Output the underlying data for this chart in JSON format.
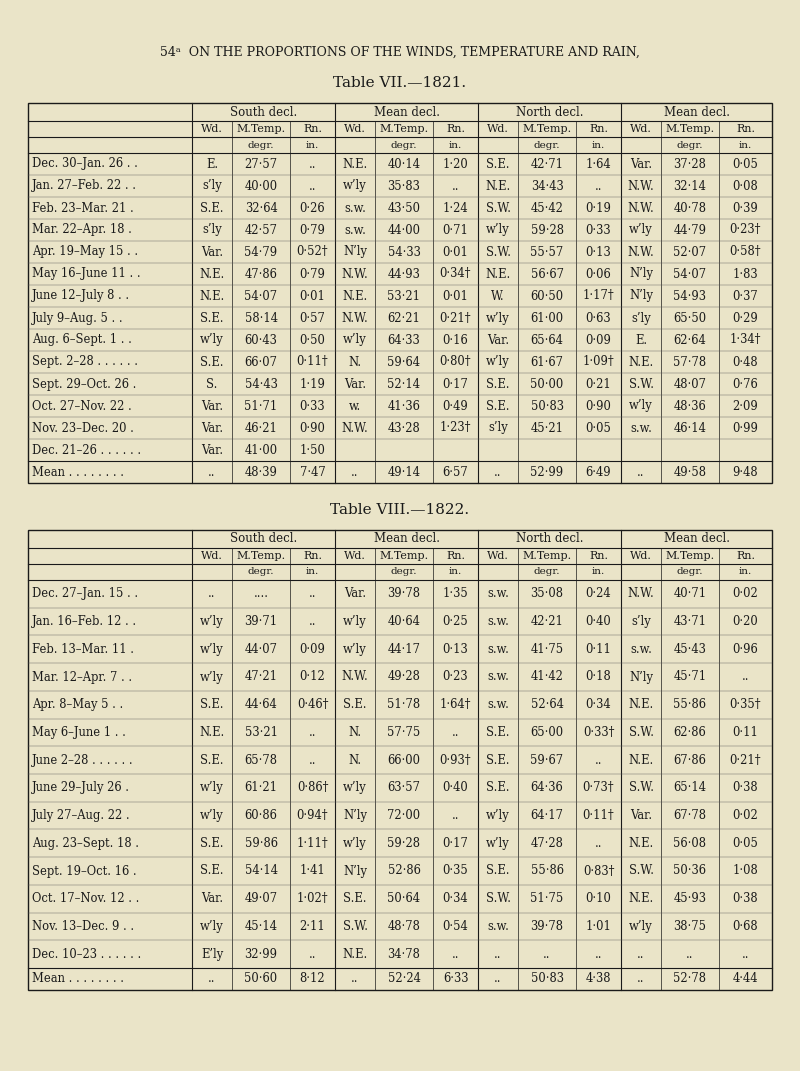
{
  "bg_color": "#EAE4C8",
  "text_color": "#1a1a1a",
  "page_header": "54ᵃ  ON THE PROPORTIONS OF THE WINDS, TEMPERATURE AND RAIN,",
  "table1_title": "Table VII.—1821.",
  "table2_title": "Table VIII.—1822.",
  "group_labels": [
    "South decl.",
    "Mean decl.",
    "North decl.",
    "Mean decl."
  ],
  "col_sub_labels": [
    "Wd.",
    "M.Temp.",
    "Rn."
  ],
  "col_sub2_labels": [
    "degr.",
    "in."
  ],
  "table1_rows": [
    [
      "Dec. 30–Jan. 26 . .",
      "E.",
      "27·57",
      "..",
      "N.E.",
      "40·14",
      "1·20",
      "S.E.",
      "42·71",
      "1·64",
      "Var.",
      "37·28",
      "0·05"
    ],
    [
      "Jan. 27–Feb. 22 . .",
      "s’ly",
      "40·00",
      "..",
      "w’ly",
      "35·83",
      "..",
      "N.E.",
      "34·43",
      "..",
      "N.W.",
      "32·14",
      "0·08"
    ],
    [
      "Feb. 23–Mar. 21 .",
      "S.E.",
      "32·64",
      "0·26",
      "s.w.",
      "43·50",
      "1·24",
      "S.W.",
      "45·42",
      "0·19",
      "N.W.",
      "40·78",
      "0·39"
    ],
    [
      "Mar. 22–Apr. 18 .",
      "s’ly",
      "42·57",
      "0·79",
      "s.w.",
      "44·00",
      "0·71",
      "w’ly",
      "59·28",
      "0·33",
      "w’ly",
      "44·79",
      "0·23†"
    ],
    [
      "Apr. 19–May 15 . .",
      "Var.",
      "54·79",
      "0·52†",
      "N’ly",
      "54·33",
      "0·01",
      "S.W.",
      "55·57",
      "0·13",
      "N.W.",
      "52·07",
      "0·58†"
    ],
    [
      "May 16–June 11 . .",
      "N.E.",
      "47·86",
      "0·79",
      "N.W.",
      "44·93",
      "0·34†",
      "N.E.",
      "56·67",
      "0·06",
      "N’ly",
      "54·07",
      "1·83"
    ],
    [
      "June 12–July 8 . .",
      "N.E.",
      "54·07",
      "0·01",
      "N.E.",
      "53·21",
      "0·01",
      "W.",
      "60·50",
      "1·17†",
      "N’ly",
      "54·93",
      "0·37"
    ],
    [
      "July 9–Aug. 5 . .",
      "S.E.",
      "58·14",
      "0·57",
      "N.W.",
      "62·21",
      "0·21†",
      "w’ly",
      "61·00",
      "0·63",
      "s’ly",
      "65·50",
      "0·29"
    ],
    [
      "Aug. 6–Sept. 1 . .",
      "w’ly",
      "60·43",
      "0·50",
      "w’ly",
      "64·33",
      "0·16",
      "Var.",
      "65·64",
      "0·09",
      "E.",
      "62·64",
      "1·34†"
    ],
    [
      "Sept. 2–28 . . . . . .",
      "S.E.",
      "66·07",
      "0·11†",
      "N.",
      "59·64",
      "0·80†",
      "w’ly",
      "61·67",
      "1·09†",
      "N.E.",
      "57·78",
      "0·48"
    ],
    [
      "Sept. 29–Oct. 26 .",
      "S.",
      "54·43",
      "1·19",
      "Var.",
      "52·14",
      "0·17",
      "S.E.",
      "50·00",
      "0·21",
      "S.W.",
      "48·07",
      "0·76"
    ],
    [
      "Oct. 27–Nov. 22 .",
      "Var.",
      "51·71",
      "0·33",
      "w.",
      "41·36",
      "0·49",
      "S.E.",
      "50·83",
      "0·90",
      "w’ly",
      "48·36",
      "2·09"
    ],
    [
      "Nov. 23–Dec. 20 .",
      "Var.",
      "46·21",
      "0·90",
      "N.W.",
      "43·28",
      "1·23†",
      "s’ly",
      "45·21",
      "0·05",
      "s.w.",
      "46·14",
      "0·99"
    ],
    [
      "Dec. 21–26 . . . . . .",
      "Var.",
      "41·00",
      "1·50",
      "",
      "",
      "",
      "",
      "",
      "",
      "",
      "",
      ""
    ]
  ],
  "table1_mean": [
    "Mean . . . . . . . .",
    "..",
    "48·39",
    "7·47",
    "..",
    "49·14",
    "6·57",
    "..",
    "52·99",
    "6·49",
    "..",
    "49·58",
    "9·48"
  ],
  "table2_rows": [
    [
      "Dec. 27–Jan. 15 . .",
      "..",
      "....",
      "..",
      "Var.",
      "39·78",
      "1·35",
      "s.w.",
      "35·08",
      "0·24",
      "N.W.",
      "40·71",
      "0·02"
    ],
    [
      "Jan. 16–Feb. 12 . .",
      "w’ly",
      "39·71",
      "..",
      "w’ly",
      "40·64",
      "0·25",
      "s.w.",
      "42·21",
      "0·40",
      "s’ly",
      "43·71",
      "0·20"
    ],
    [
      "Feb. 13–Mar. 11 .",
      "w’ly",
      "44·07",
      "0·09",
      "w’ly",
      "44·17",
      "0·13",
      "s.w.",
      "41·75",
      "0·11",
      "s.w.",
      "45·43",
      "0·96"
    ],
    [
      "Mar. 12–Apr. 7 . .",
      "w’ly",
      "47·21",
      "0·12",
      "N.W.",
      "49·28",
      "0·23",
      "s.w.",
      "41·42",
      "0·18",
      "N’ly",
      "45·71",
      ".."
    ],
    [
      "Apr. 8–May 5 . .",
      "S.E.",
      "44·64",
      "0·46†",
      "S.E.",
      "51·78",
      "1·64†",
      "s.w.",
      "52·64",
      "0·34",
      "N.E.",
      "55·86",
      "0·35†"
    ],
    [
      "May 6–June 1 . .",
      "N.E.",
      "53·21",
      "..",
      "N.",
      "57·75",
      "..",
      "S.E.",
      "65·00",
      "0·33†",
      "S.W.",
      "62·86",
      "0·11"
    ],
    [
      "June 2–28 . . . . . .",
      "S.E.",
      "65·78",
      "..",
      "N.",
      "66·00",
      "0·93†",
      "S.E.",
      "59·67",
      "..",
      "N.E.",
      "67·86",
      "0·21†"
    ],
    [
      "June 29–July 26 .",
      "w’ly",
      "61·21",
      "0·86†",
      "w’ly",
      "63·57",
      "0·40",
      "S.E.",
      "64·36",
      "0·73†",
      "S.W.",
      "65·14",
      "0·38"
    ],
    [
      "July 27–Aug. 22 .",
      "w’ly",
      "60·86",
      "0·94†",
      "N’ly",
      "72·00",
      "..",
      "w’ly",
      "64·17",
      "0·11†",
      "Var.",
      "67·78",
      "0·02"
    ],
    [
      "Aug. 23–Sept. 18 .",
      "S.E.",
      "59·86",
      "1·11†",
      "w’ly",
      "59·28",
      "0·17",
      "w’ly",
      "47·28",
      "..",
      "N.E.",
      "56·08",
      "0·05"
    ],
    [
      "Sept. 19–Oct. 16 .",
      "S.E.",
      "54·14",
      "1·41",
      "N’ly",
      "52·86",
      "0·35",
      "S.E.",
      "55·86",
      "0·83†",
      "S.W.",
      "50·36",
      "1·08"
    ],
    [
      "Oct. 17–Nov. 12 . .",
      "Var.",
      "49·07",
      "1·02†",
      "S.E.",
      "50·64",
      "0·34",
      "S.W.",
      "51·75",
      "0·10",
      "N.E.",
      "45·93",
      "0·38"
    ],
    [
      "Nov. 13–Dec. 9 . .",
      "w’ly",
      "45·14",
      "2·11",
      "S.W.",
      "48·78",
      "0·54",
      "s.w.",
      "39·78",
      "1·01",
      "w’ly",
      "38·75",
      "0·68"
    ],
    [
      "Dec. 10–23 . . . . . .",
      "E’ly",
      "32·99",
      "..",
      "N.E.",
      "34·78",
      "..",
      "..",
      "..",
      "..",
      "..",
      "..",
      ".."
    ]
  ],
  "table2_mean": [
    "Mean . . . . . . . .",
    "..",
    "50·60",
    "8·12",
    "..",
    "52·24",
    "6·33",
    "..",
    "50·83",
    "4·38",
    "..",
    "52·78",
    "4·44"
  ]
}
